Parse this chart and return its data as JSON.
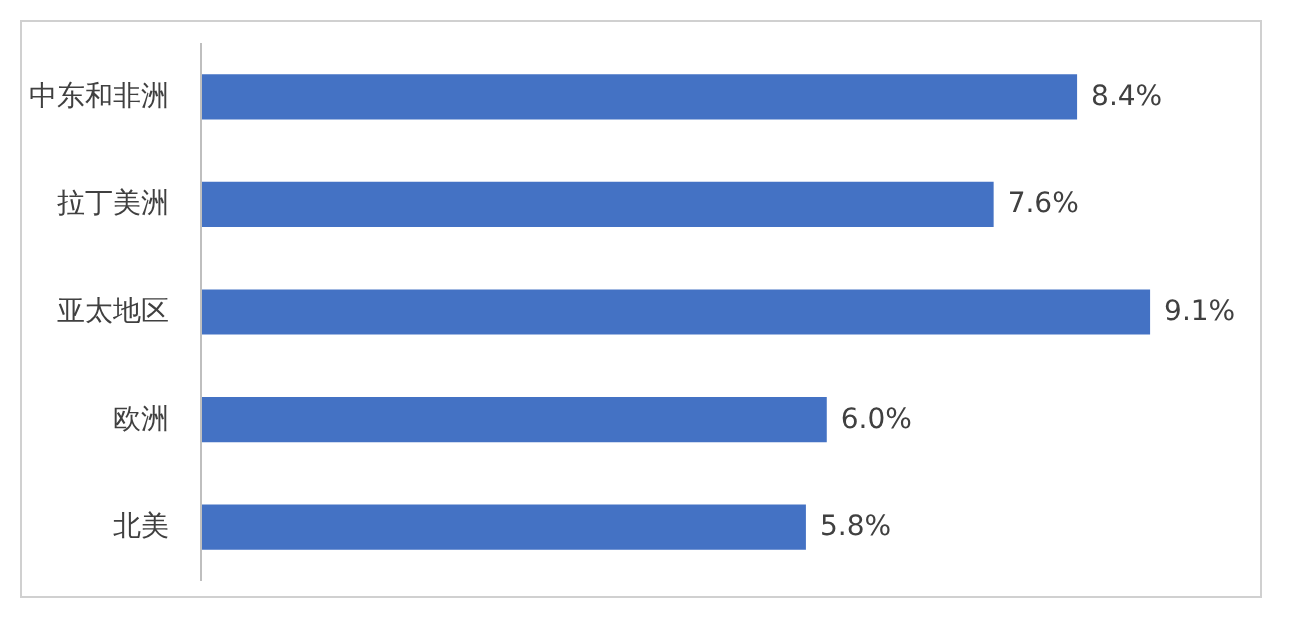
{
  "chart_data": {
    "type": "bar",
    "orientation": "horizontal",
    "categories": [
      "中东和非洲",
      "拉丁美洲",
      "亚太地区",
      "欧洲",
      "北美"
    ],
    "values": [
      8.4,
      7.6,
      9.1,
      6.0,
      5.8
    ],
    "value_labels": [
      "8.4%",
      "7.6%",
      "9.1%",
      "6.0%",
      "5.8%"
    ],
    "color": "#4472c4"
  }
}
